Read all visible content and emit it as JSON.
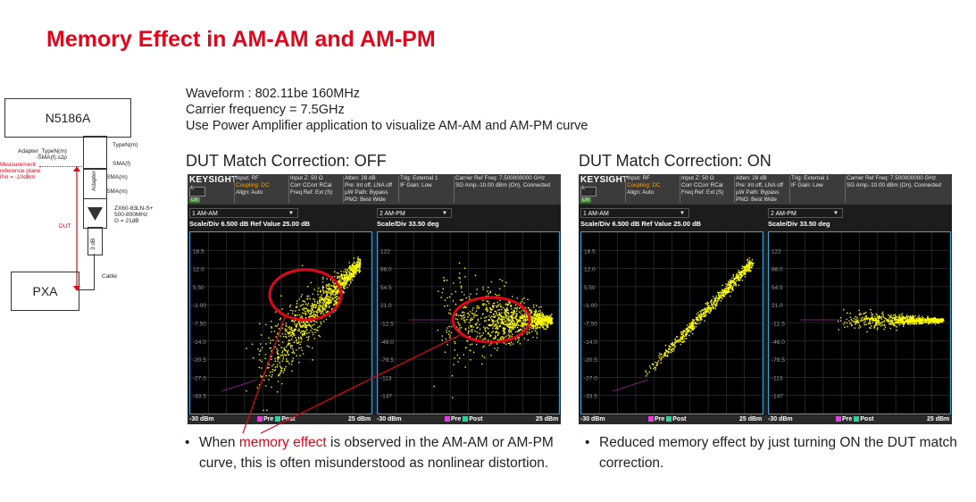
{
  "title": "Memory Effect in AM-AM and AM-PM",
  "info": [
    "Waveform : 802.11be 160MHz",
    "Carrier frequency = 7.5GHz",
    "Use Power Amplifier application to visualize AM-AM and AM-PM curve"
  ],
  "setup": {
    "source": "N5186A",
    "analyzer": "PXA",
    "adapter_label_1": "Adapter_TypeN(m)",
    "adapter_label_2": "-SMA(f).s2p",
    "ref_plane_1": "Measurement",
    "ref_plane_2": "reference plane",
    "ref_plane_3": "Pin = -10dBm",
    "typen": "TypeN(m)",
    "smaf": "SMA(f)",
    "smam1": "SMA(m)",
    "smam2": "SMA(m)",
    "adapter": "Adapter",
    "amp_1": "ZX60-83LN-S+",
    "amp_2": "500-800MHz",
    "amp_3": "G = 21dB",
    "dut": "DUT",
    "atten": "3 dB",
    "cable": "Cable"
  },
  "left": {
    "heading": "DUT Match Correction: OFF",
    "bullet_pre": "When ",
    "bullet_highlight": "memory effect",
    "bullet_post": " is observed in the AM-AM or AM-PM curve, this is often misunderstood as nonlinear distortion."
  },
  "right": {
    "heading": "DUT Match Correction: ON",
    "bullet": "Reduced memory effect by just turning ON the DUT match correction."
  },
  "instrument": {
    "logo": "KEYSIGHT",
    "mode": "L",
    "lxi": "LXI",
    "col1": [
      "Input: RF",
      "Coupling: DC",
      "Align: Auto"
    ],
    "col2": [
      "Input Z: 50 Ω",
      "Corr CCorr RCal",
      "Freq Ref: Ext (S)"
    ],
    "col3": [
      "Atten: 28 dB",
      "Pre: Int off, LNA off",
      "µW Path: Bypass",
      "PNO: Best Wide"
    ],
    "col4": [
      "Trig: External 1",
      "IF Gain: Low"
    ],
    "col5": [
      "Carrier Ref Freq: 7.500000000 GHz",
      "SG Amp.-10.00 dBm (On), Connected"
    ],
    "w1_title": "1 AM-AM",
    "w2_title": "2 AM-PM",
    "w1_scale": "Scale/Div 6.500 dB  Ref Value 25.00 dB",
    "w2_scale": "Scale/Div 33.50 deg",
    "amam_ticks": [
      "18.5",
      "12.0",
      "5.50",
      "-1.00",
      "-7.50",
      "-14.0",
      "-20.5",
      "-27.0",
      "-33.5"
    ],
    "ampm_ticks": [
      "122",
      "88.0",
      "54.5",
      "21.0",
      "-12.5",
      "-46.0",
      "-79.5",
      "-113",
      "-147"
    ],
    "x_start": "-30 dBm",
    "x_stop": "25 dBm",
    "legend_pre": "Pre",
    "legend_post": "Post",
    "colors": {
      "trace": "#ffff00",
      "pre": "#e040e0",
      "post": "#30d0a0",
      "highlight": "#e3051b"
    }
  }
}
